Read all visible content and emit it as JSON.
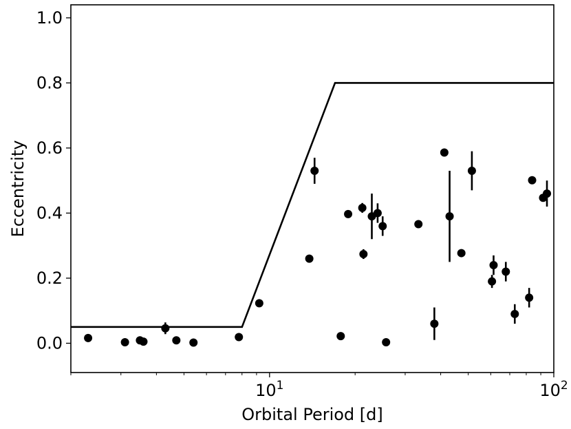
{
  "chart_data": {
    "type": "scatter",
    "xlabel": "Orbital Period [d]",
    "ylabel": "Eccentricity",
    "xscale": "log",
    "xlim": [
      2,
      100
    ],
    "ylim": [
      -0.09,
      1.04
    ],
    "grid": false,
    "legend": "none",
    "x_ticks": [
      {
        "value": 10,
        "base": "10",
        "exp": "1"
      },
      {
        "value": 100,
        "base": "10",
        "exp": "2"
      }
    ],
    "y_ticks": [
      "0.0",
      "0.2",
      "0.4",
      "0.6",
      "0.8",
      "1.0"
    ],
    "boundary_line": {
      "x": [
        2,
        8,
        17,
        100
      ],
      "y": [
        0.05,
        0.05,
        0.8,
        0.8
      ]
    },
    "points": [
      {
        "x": 2.3,
        "y": 0.016,
        "err": 0.012
      },
      {
        "x": 3.1,
        "y": 0.003,
        "err": 0
      },
      {
        "x": 3.5,
        "y": 0.009,
        "err": 0
      },
      {
        "x": 3.6,
        "y": 0.005,
        "err": 0
      },
      {
        "x": 4.3,
        "y": 0.046,
        "err": 0.018
      },
      {
        "x": 4.7,
        "y": 0.009,
        "err": 0
      },
      {
        "x": 5.4,
        "y": 0.002,
        "err": 0
      },
      {
        "x": 7.8,
        "y": 0.019,
        "err": 0
      },
      {
        "x": 9.2,
        "y": 0.123,
        "err": 0
      },
      {
        "x": 13.8,
        "y": 0.26,
        "err": 0
      },
      {
        "x": 14.4,
        "y": 0.53,
        "err": 0.04
      },
      {
        "x": 17.8,
        "y": 0.022,
        "err": 0
      },
      {
        "x": 18.9,
        "y": 0.397,
        "err": 0
      },
      {
        "x": 21.2,
        "y": 0.416,
        "err": 0.015
      },
      {
        "x": 21.4,
        "y": 0.274,
        "err": 0.015
      },
      {
        "x": 22.9,
        "y": 0.39,
        "err": 0.07
      },
      {
        "x": 24.0,
        "y": 0.4,
        "err": 0.03
      },
      {
        "x": 25.0,
        "y": 0.36,
        "err": 0.03
      },
      {
        "x": 25.7,
        "y": 0.003,
        "err": 0
      },
      {
        "x": 33.4,
        "y": 0.366,
        "err": 0
      },
      {
        "x": 38.0,
        "y": 0.06,
        "err": 0.05
      },
      {
        "x": 41.2,
        "y": 0.586,
        "err": 0
      },
      {
        "x": 43.0,
        "y": 0.39,
        "err": 0.14
      },
      {
        "x": 47.3,
        "y": 0.277,
        "err": 0
      },
      {
        "x": 51.5,
        "y": 0.53,
        "err": 0.06
      },
      {
        "x": 60.6,
        "y": 0.19,
        "err": 0.02
      },
      {
        "x": 61.4,
        "y": 0.24,
        "err": 0.03
      },
      {
        "x": 67.8,
        "y": 0.22,
        "err": 0.03
      },
      {
        "x": 72.9,
        "y": 0.09,
        "err": 0.03
      },
      {
        "x": 81.9,
        "y": 0.14,
        "err": 0.03
      },
      {
        "x": 83.9,
        "y": 0.501,
        "err": 0
      },
      {
        "x": 91.7,
        "y": 0.447,
        "err": 0
      },
      {
        "x": 94.6,
        "y": 0.46,
        "err": 0.04
      }
    ]
  }
}
